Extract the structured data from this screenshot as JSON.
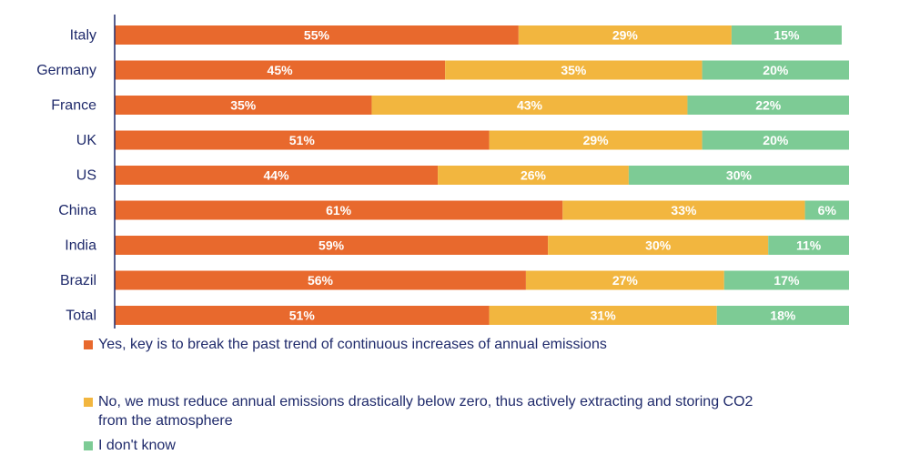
{
  "colors": {
    "yes": "#e8692d",
    "no": "#f2b63f",
    "dont_know": "#7dcb95",
    "axis": "#1f2a6b",
    "text": "#1f2a6b"
  },
  "chart_data": {
    "type": "bar",
    "orientation": "horizontal",
    "stacked": true,
    "value_unit": "%",
    "categories": [
      "Italy",
      "Germany",
      "France",
      "UK",
      "US",
      "China",
      "India",
      "Brazil",
      "Total"
    ],
    "series": [
      {
        "name": "Yes, key is to break the past trend of continuous increases of annual emissions",
        "color": "#e8692d",
        "values": [
          55,
          45,
          35,
          51,
          44,
          61,
          59,
          56,
          51
        ]
      },
      {
        "name": "No, we must reduce annual emissions drastically below zero, thus actively extracting and storing CO2 from the atmosphere",
        "color": "#f2b63f",
        "values": [
          29,
          35,
          43,
          29,
          26,
          33,
          30,
          27,
          31
        ]
      },
      {
        "name": "I don't know",
        "color": "#7dcb95",
        "values": [
          15,
          20,
          22,
          20,
          30,
          6,
          11,
          17,
          18
        ]
      }
    ],
    "xlim": [
      0,
      100
    ],
    "grid": false,
    "legend_position": "bottom"
  },
  "legend": {
    "items": [
      {
        "line1": "Yes, key is to break the past trend of continuous increases of annual emissions",
        "line2": ""
      },
      {
        "line1": "No, we must reduce annual emissions drastically below zero, thus actively extracting and storing CO2",
        "line2": "from the atmosphere"
      },
      {
        "line1": "I don't know",
        "line2": ""
      }
    ]
  }
}
